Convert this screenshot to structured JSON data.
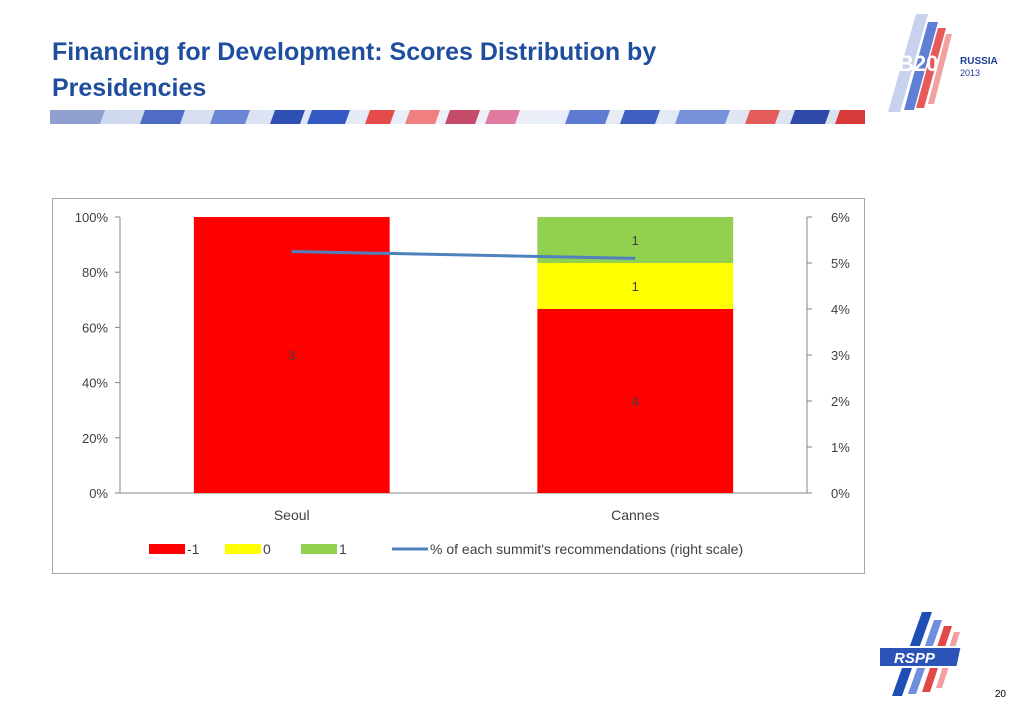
{
  "slide": {
    "title": "Financing for Development: Scores Distribution by Presidencies",
    "page_number": "20",
    "logo_b20": {
      "mark": "B20",
      "country": "RUSSIA",
      "year": "2013"
    },
    "logo_rspp": {
      "text": "RSPP"
    }
  },
  "colors": {
    "title": "#1f4e9e",
    "neg": "#ff0000",
    "zero": "#ffff00",
    "pos": "#92d050",
    "line": "#4f81bd"
  },
  "chart_data": {
    "type": "bar",
    "stacked": true,
    "percent_stacked": true,
    "categories": [
      "Seoul",
      "Cannes"
    ],
    "series": [
      {
        "name": "-1",
        "color": "#ff0000",
        "values": [
          3,
          4
        ],
        "labels": [
          "3",
          "4"
        ]
      },
      {
        "name": "0",
        "color": "#ffff00",
        "values": [
          0,
          1
        ],
        "labels": [
          "",
          "1"
        ]
      },
      {
        "name": "1",
        "color": "#92d050",
        "values": [
          0,
          1
        ],
        "labels": [
          "",
          "1"
        ]
      }
    ],
    "line_series": {
      "name": "% of each summit's recommendations (right scale)",
      "color": "#4f81bd",
      "axis": "right",
      "values": [
        5.25,
        5.1
      ]
    },
    "left_axis": {
      "ticks": [
        "0%",
        "20%",
        "40%",
        "60%",
        "80%",
        "100%"
      ],
      "range": [
        0,
        100
      ]
    },
    "right_axis": {
      "ticks": [
        "0%",
        "1%",
        "2%",
        "3%",
        "4%",
        "5%",
        "6%"
      ],
      "range": [
        0,
        6
      ]
    },
    "legend_position": "bottom",
    "grid": false
  }
}
